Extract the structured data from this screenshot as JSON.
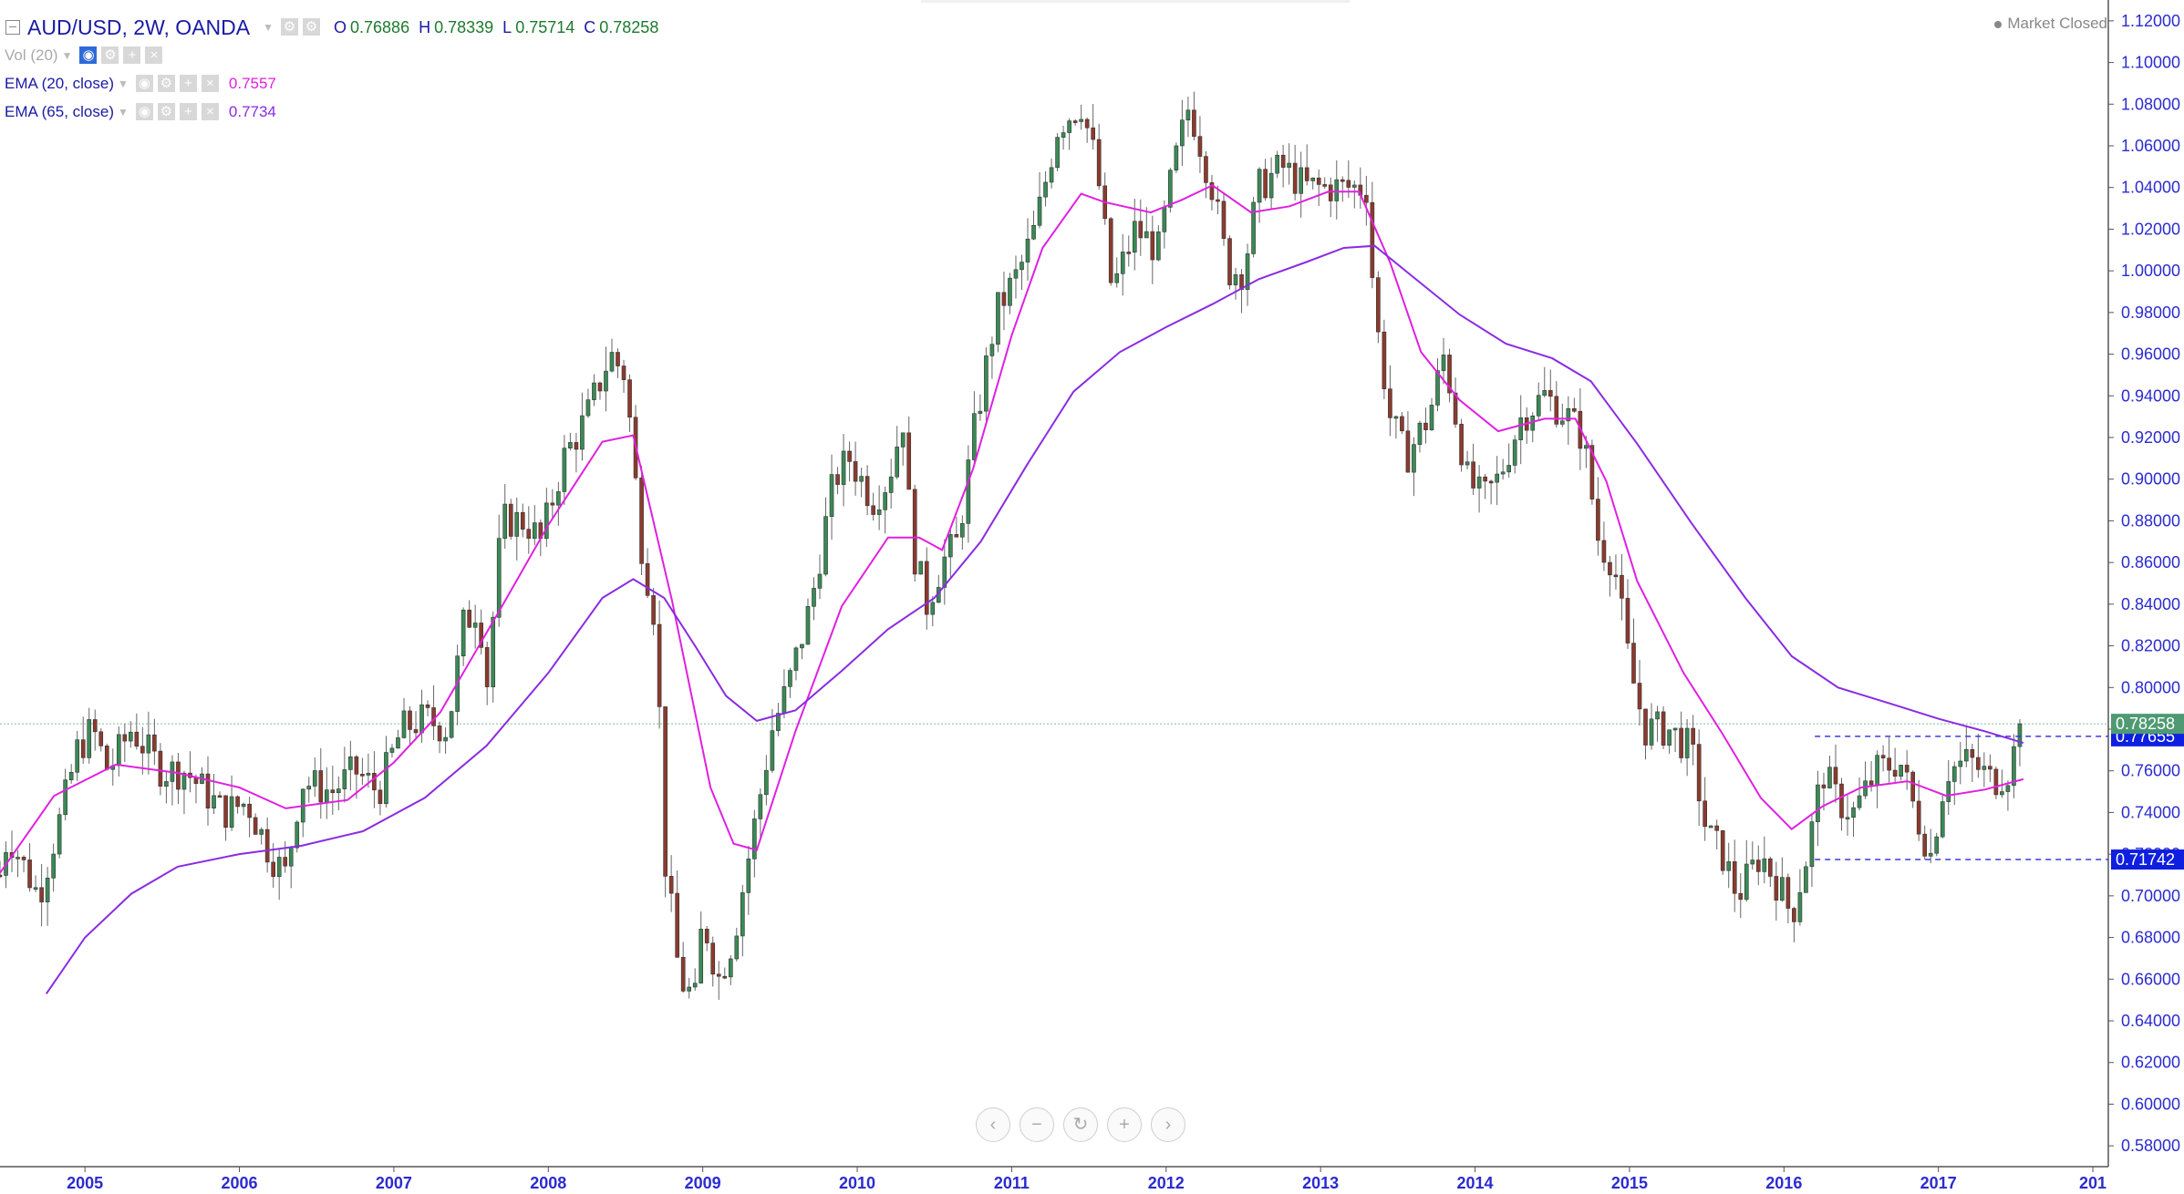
{
  "header": {
    "symbol": "AUD/USD, 2W, OANDA",
    "open_label": "O",
    "open": "0.76886",
    "high_label": "H",
    "high": "0.78339",
    "low_label": "L",
    "low": "0.75714",
    "close_label": "C",
    "close": "0.78258"
  },
  "indicators": [
    {
      "label": "Vol (20)",
      "value": ""
    },
    {
      "label": "EMA (20, close)",
      "value": "0.7557",
      "color": "#e020e0"
    },
    {
      "label": "EMA (65, close)",
      "value": "0.7734",
      "color": "#8a2be2"
    }
  ],
  "status": {
    "text": "Market Closed"
  },
  "icons": [
    "collapse-icon",
    "chevron-down-icon",
    "settings-icon",
    "eye-icon",
    "plus-icon",
    "close-icon",
    "chevron-left-icon",
    "zoom-out-icon",
    "reset-icon",
    "zoom-in-icon",
    "chevron-right-icon"
  ],
  "colors": {
    "bull": "#3a8a55",
    "bear": "#8c3a2e",
    "ema20": "#e020e0",
    "ema65": "#8a2be2",
    "axis_text": "#2b2bd0",
    "last_price_bg": "#4f9a73",
    "level_bg": "#0f1fe0"
  },
  "chart_data": {
    "type": "candlestick",
    "interval": "2W",
    "x_ticks": [
      "2005",
      "2006",
      "2007",
      "2008",
      "2009",
      "2010",
      "2011",
      "2012",
      "2013",
      "2014",
      "2015",
      "2016",
      "2017",
      "201"
    ],
    "y_ticks": [
      "0.58000",
      "0.60000",
      "0.62000",
      "0.64000",
      "0.66000",
      "0.68000",
      "0.70000",
      "0.72000",
      "0.74000",
      "0.76000",
      "0.78000",
      "0.80000",
      "0.82000",
      "0.84000",
      "0.86000",
      "0.88000",
      "0.90000",
      "0.92000",
      "0.94000",
      "0.96000",
      "0.98000",
      "1.00000",
      "1.02000",
      "1.04000",
      "1.06000",
      "1.08000",
      "1.10000",
      "1.12000"
    ],
    "ylim": [
      0.57,
      1.13
    ],
    "xlim": [
      2004.45,
      2018.1
    ],
    "series": [
      {
        "name": "EMA (20, close)",
        "color": "#e020e0",
        "points": [
          [
            2004.45,
            0.711
          ],
          [
            2004.8,
            0.748
          ],
          [
            2005.2,
            0.763
          ],
          [
            2005.6,
            0.759
          ],
          [
            2006.0,
            0.752
          ],
          [
            2006.3,
            0.742
          ],
          [
            2006.7,
            0.746
          ],
          [
            2007.0,
            0.764
          ],
          [
            2007.3,
            0.788
          ],
          [
            2007.7,
            0.839
          ],
          [
            2008.0,
            0.878
          ],
          [
            2008.35,
            0.918
          ],
          [
            2008.55,
            0.921
          ],
          [
            2008.8,
            0.842
          ],
          [
            2009.05,
            0.752
          ],
          [
            2009.2,
            0.725
          ],
          [
            2009.35,
            0.722
          ],
          [
            2009.6,
            0.779
          ],
          [
            2009.9,
            0.839
          ],
          [
            2010.2,
            0.872
          ],
          [
            2010.4,
            0.872
          ],
          [
            2010.55,
            0.866
          ],
          [
            2010.75,
            0.905
          ],
          [
            2011.0,
            0.969
          ],
          [
            2011.2,
            1.011
          ],
          [
            2011.45,
            1.037
          ],
          [
            2011.6,
            1.033
          ],
          [
            2011.9,
            1.028
          ],
          [
            2012.1,
            1.034
          ],
          [
            2012.3,
            1.041
          ],
          [
            2012.55,
            1.028
          ],
          [
            2012.8,
            1.031
          ],
          [
            2013.05,
            1.038
          ],
          [
            2013.25,
            1.038
          ],
          [
            2013.45,
            1.004
          ],
          [
            2013.65,
            0.961
          ],
          [
            2013.9,
            0.938
          ],
          [
            2014.15,
            0.923
          ],
          [
            2014.45,
            0.929
          ],
          [
            2014.65,
            0.929
          ],
          [
            2014.85,
            0.899
          ],
          [
            2015.05,
            0.851
          ],
          [
            2015.35,
            0.807
          ],
          [
            2015.6,
            0.778
          ],
          [
            2015.85,
            0.747
          ],
          [
            2016.05,
            0.732
          ],
          [
            2016.25,
            0.743
          ],
          [
            2016.5,
            0.752
          ],
          [
            2016.8,
            0.755
          ],
          [
            2017.05,
            0.748
          ],
          [
            2017.3,
            0.751
          ],
          [
            2017.55,
            0.756
          ]
        ]
      },
      {
        "name": "EMA (65, close)",
        "color": "#8a2be2",
        "points": [
          [
            2004.75,
            0.653
          ],
          [
            2005.0,
            0.68
          ],
          [
            2005.3,
            0.701
          ],
          [
            2005.6,
            0.714
          ],
          [
            2006.0,
            0.72
          ],
          [
            2006.4,
            0.724
          ],
          [
            2006.8,
            0.731
          ],
          [
            2007.2,
            0.747
          ],
          [
            2007.6,
            0.772
          ],
          [
            2008.0,
            0.807
          ],
          [
            2008.35,
            0.843
          ],
          [
            2008.55,
            0.852
          ],
          [
            2008.75,
            0.843
          ],
          [
            2008.95,
            0.82
          ],
          [
            2009.15,
            0.796
          ],
          [
            2009.35,
            0.784
          ],
          [
            2009.6,
            0.789
          ],
          [
            2009.9,
            0.808
          ],
          [
            2010.2,
            0.828
          ],
          [
            2010.5,
            0.843
          ],
          [
            2010.8,
            0.87
          ],
          [
            2011.1,
            0.907
          ],
          [
            2011.4,
            0.942
          ],
          [
            2011.7,
            0.961
          ],
          [
            2012.0,
            0.973
          ],
          [
            2012.3,
            0.984
          ],
          [
            2012.6,
            0.996
          ],
          [
            2012.9,
            1.004
          ],
          [
            2013.15,
            1.011
          ],
          [
            2013.35,
            1.012
          ],
          [
            2013.6,
            0.997
          ],
          [
            2013.9,
            0.979
          ],
          [
            2014.2,
            0.965
          ],
          [
            2014.5,
            0.958
          ],
          [
            2014.75,
            0.947
          ],
          [
            2015.05,
            0.917
          ],
          [
            2015.4,
            0.879
          ],
          [
            2015.75,
            0.843
          ],
          [
            2016.05,
            0.815
          ],
          [
            2016.35,
            0.8
          ],
          [
            2016.7,
            0.792
          ],
          [
            2017.0,
            0.785
          ],
          [
            2017.3,
            0.779
          ],
          [
            2017.55,
            0.7734
          ]
        ]
      }
    ],
    "horizontal_levels": [
      {
        "value": 0.77655,
        "label": "0.77655"
      },
      {
        "value": 0.71742,
        "label": "0.71742"
      }
    ],
    "last_price": {
      "value": 0.78258,
      "label": "0.78258"
    },
    "candles_note": "approximate biweekly OHLC reconstructed from the visible price path",
    "price_path": [
      [
        2004.45,
        0.71
      ],
      [
        2004.5,
        0.73
      ],
      [
        2004.7,
        0.7
      ],
      [
        2004.85,
        0.74
      ],
      [
        2004.95,
        0.77
      ],
      [
        2005.05,
        0.78
      ],
      [
        2005.15,
        0.76
      ],
      [
        2005.3,
        0.78
      ],
      [
        2005.5,
        0.76
      ],
      [
        2005.65,
        0.76
      ],
      [
        2005.9,
        0.74
      ],
      [
        2006.05,
        0.745
      ],
      [
        2006.2,
        0.72
      ],
      [
        2006.3,
        0.71
      ],
      [
        2006.4,
        0.755
      ],
      [
        2006.6,
        0.75
      ],
      [
        2006.75,
        0.76
      ],
      [
        2006.9,
        0.75
      ],
      [
        2007.05,
        0.78
      ],
      [
        2007.2,
        0.785
      ],
      [
        2007.35,
        0.78
      ],
      [
        2007.45,
        0.83
      ],
      [
        2007.55,
        0.84
      ],
      [
        2007.6,
        0.8
      ],
      [
        2007.7,
        0.88
      ],
      [
        2007.85,
        0.88
      ],
      [
        2007.95,
        0.87
      ],
      [
        2008.1,
        0.91
      ],
      [
        2008.25,
        0.93
      ],
      [
        2008.4,
        0.96
      ],
      [
        2008.5,
        0.95
      ],
      [
        2008.6,
        0.87
      ],
      [
        2008.7,
        0.83
      ],
      [
        2008.75,
        0.72
      ],
      [
        2008.85,
        0.66
      ],
      [
        2008.95,
        0.65
      ],
      [
        2009.0,
        0.69
      ],
      [
        2009.1,
        0.66
      ],
      [
        2009.2,
        0.68
      ],
      [
        2009.3,
        0.72
      ],
      [
        2009.45,
        0.78
      ],
      [
        2009.55,
        0.8
      ],
      [
        2009.7,
        0.84
      ],
      [
        2009.85,
        0.9
      ],
      [
        2009.95,
        0.91
      ],
      [
        2010.1,
        0.89
      ],
      [
        2010.2,
        0.9
      ],
      [
        2010.3,
        0.93
      ],
      [
        2010.35,
        0.87
      ],
      [
        2010.45,
        0.84
      ],
      [
        2010.55,
        0.86
      ],
      [
        2010.65,
        0.87
      ],
      [
        2010.75,
        0.92
      ],
      [
        2010.9,
        0.98
      ],
      [
        2011.05,
        1.0
      ],
      [
        2011.15,
        1.02
      ],
      [
        2011.3,
        1.07
      ],
      [
        2011.45,
        1.08
      ],
      [
        2011.55,
        1.05
      ],
      [
        2011.65,
        0.99
      ],
      [
        2011.8,
        1.02
      ],
      [
        2011.95,
        1.01
      ],
      [
        2012.05,
        1.05
      ],
      [
        2012.15,
        1.08
      ],
      [
        2012.3,
        1.04
      ],
      [
        2012.4,
        1.0
      ],
      [
        2012.5,
        1.0
      ],
      [
        2012.6,
        1.04
      ],
      [
        2012.75,
        1.05
      ],
      [
        2012.9,
        1.04
      ],
      [
        2013.05,
        1.04
      ],
      [
        2013.2,
        1.04
      ],
      [
        2013.3,
        1.04
      ],
      [
        2013.35,
        0.98
      ],
      [
        2013.45,
        0.93
      ],
      [
        2013.55,
        0.91
      ],
      [
        2013.7,
        0.93
      ],
      [
        2013.8,
        0.96
      ],
      [
        2013.95,
        0.9
      ],
      [
        2014.05,
        0.89
      ],
      [
        2014.15,
        0.9
      ],
      [
        2014.3,
        0.93
      ],
      [
        2014.45,
        0.94
      ],
      [
        2014.6,
        0.93
      ],
      [
        2014.7,
        0.92
      ],
      [
        2014.8,
        0.87
      ],
      [
        2014.9,
        0.86
      ],
      [
        2015.0,
        0.81
      ],
      [
        2015.1,
        0.78
      ],
      [
        2015.25,
        0.78
      ],
      [
        2015.4,
        0.77
      ],
      [
        2015.5,
        0.73
      ],
      [
        2015.6,
        0.72
      ],
      [
        2015.7,
        0.7
      ],
      [
        2015.85,
        0.72
      ],
      [
        2016.0,
        0.7
      ],
      [
        2016.05,
        0.69
      ],
      [
        2016.15,
        0.72
      ],
      [
        2016.25,
        0.76
      ],
      [
        2016.35,
        0.745
      ],
      [
        2016.45,
        0.74
      ],
      [
        2016.6,
        0.76
      ],
      [
        2016.75,
        0.765
      ],
      [
        2016.85,
        0.74
      ],
      [
        2016.95,
        0.72
      ],
      [
        2017.05,
        0.76
      ],
      [
        2017.2,
        0.765
      ],
      [
        2017.35,
        0.755
      ],
      [
        2017.45,
        0.76
      ],
      [
        2017.55,
        0.7826
      ]
    ]
  },
  "nav": {
    "buttons": [
      "‹",
      "−",
      "↻",
      "+",
      "›"
    ]
  }
}
